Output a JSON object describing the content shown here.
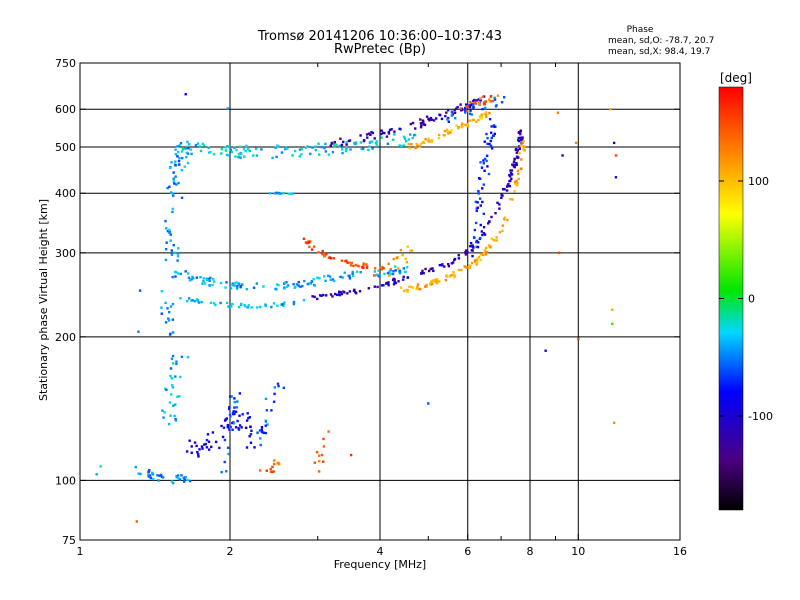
{
  "chart_data": {
    "type": "scatter",
    "title": "Tromsø 20141206 10:36:00–10:37:43",
    "subtitle": "RwPretec (Bp)",
    "xlabel": "Frequency [MHz]",
    "ylabel": "Stationary phase Virtual Height [km]",
    "x_scale": "log",
    "y_scale": "log",
    "xlim": [
      1,
      16
    ],
    "ylim": [
      75,
      750
    ],
    "x_ticks": [
      1,
      2,
      4,
      6,
      8,
      10,
      16
    ],
    "x_tick_labels": [
      "1",
      "2",
      "4",
      "6",
      "8",
      "10",
      "16"
    ],
    "x_minor_ticks": [
      3,
      5,
      7,
      9
    ],
    "y_ticks": [
      75,
      100,
      200,
      300,
      400,
      500,
      600,
      750
    ],
    "y_tick_labels": [
      "75",
      "100",
      "200",
      "300",
      "400",
      "500",
      "600",
      "750"
    ],
    "grid": true,
    "grid_x": [
      2,
      4,
      6,
      8,
      10
    ],
    "grid_y": [
      100,
      200,
      300,
      400,
      500,
      600
    ],
    "stats": {
      "title": "Phase",
      "line_o": "mean, sd,O: -78.7, 20.7",
      "line_x": "mean, sd,X:  98.4, 19.7"
    },
    "colorbar": {
      "label": "[deg]",
      "range": [
        -180,
        180
      ],
      "ticks": [
        100,
        0,
        -100
      ],
      "tick_labels": [
        "100",
        "0",
        "-100"
      ],
      "colormap": "rainbow (black → violet → blue → cyan → green → yellow → red)"
    },
    "traces": [
      {
        "x": [
          1.55,
          1.7,
          1.9,
          2.1,
          2.3,
          2.6,
          2.9,
          3.2,
          3.6,
          4.0,
          4.4,
          4.7
        ],
        "y": [
          500,
          495,
          490,
          488,
          487,
          490,
          493,
          497,
          503,
          510,
          518,
          525
        ],
        "phase": -30,
        "jitter": 0.05,
        "n": 120
      },
      {
        "x": [
          3.2,
          3.6,
          4.0,
          4.4,
          4.8,
          5.2,
          5.6,
          6.0,
          6.4
        ],
        "y": [
          510,
          520,
          530,
          545,
          560,
          575,
          590,
          610,
          630
        ],
        "phase": -115,
        "jitter": 0.03,
        "n": 80
      },
      {
        "x": [
          4.6,
          5.0,
          5.4,
          5.8,
          6.2,
          6.6
        ],
        "y": [
          500,
          515,
          530,
          550,
          570,
          590
        ],
        "phase": 105,
        "jitter": 0.025,
        "n": 55
      },
      {
        "x": [
          5.4,
          5.8,
          6.2,
          6.6,
          7.0
        ],
        "y": [
          570,
          590,
          605,
          615,
          625
        ],
        "phase": -60,
        "jitter": 0.04,
        "n": 30
      },
      {
        "x": [
          5.8,
          6.2,
          6.6,
          6.9
        ],
        "y": [
          600,
          615,
          630,
          640
        ],
        "phase": 140,
        "jitter": 0.03,
        "n": 20
      },
      {
        "x": [
          1.48,
          1.5,
          1.52,
          1.53,
          1.54,
          1.55,
          1.57,
          1.6,
          1.62
        ],
        "y": [
          200,
          225,
          260,
          300,
          350,
          400,
          450,
          480,
          500
        ],
        "phase": -45,
        "jitter": 0.06,
        "n": 80
      },
      {
        "x": [
          1.55,
          1.7,
          1.9,
          2.1,
          2.4,
          2.7,
          3.0,
          3.4,
          3.8,
          4.2,
          4.6
        ],
        "y": [
          275,
          265,
          258,
          255,
          255,
          257,
          262,
          268,
          272,
          275,
          278
        ],
        "phase": -40,
        "jitter": 0.03,
        "n": 120
      },
      {
        "x": [
          1.6,
          1.8,
          2.0,
          2.3,
          2.6,
          2.9
        ],
        "y": [
          240,
          236,
          233,
          232,
          234,
          238
        ],
        "phase": -35,
        "jitter": 0.015,
        "n": 45
      },
      {
        "x": [
          2.9,
          3.3,
          3.7,
          4.1,
          4.5,
          5.0,
          5.5,
          6.0,
          6.4,
          6.8,
          7.1,
          7.4,
          7.6,
          7.7
        ],
        "y": [
          240,
          245,
          252,
          258,
          265,
          275,
          285,
          300,
          325,
          360,
          400,
          450,
          500,
          550
        ],
        "phase": -110,
        "jitter": 0.02,
        "n": 150
      },
      {
        "x": [
          4.4,
          4.8,
          5.2,
          5.6,
          6.0,
          6.4,
          6.8,
          7.2,
          7.5,
          7.7,
          7.8
        ],
        "y": [
          250,
          255,
          262,
          270,
          280,
          295,
          320,
          360,
          420,
          480,
          520
        ],
        "phase": 110,
        "jitter": 0.02,
        "n": 110
      },
      {
        "x": [
          2.8,
          3.0,
          3.2,
          3.5,
          3.8,
          4.1
        ],
        "y": [
          320,
          302,
          292,
          285,
          280,
          278
        ],
        "phase": 150,
        "jitter": 0.02,
        "n": 45
      },
      {
        "x": [
          6.2,
          6.3,
          6.4,
          6.5,
          6.6,
          6.8
        ],
        "y": [
          300,
          350,
          400,
          450,
          500,
          560
        ],
        "phase": -75,
        "jitter": 0.04,
        "n": 55
      },
      {
        "x": [
          1.5,
          1.52,
          1.55,
          1.6
        ],
        "y": [
          130,
          150,
          170,
          185
        ],
        "phase": -40,
        "jitter": 0.06,
        "n": 30
      },
      {
        "x": [
          1.7,
          1.9,
          2.1,
          2.3
        ],
        "y": [
          115,
          125,
          135,
          120
        ],
        "phase": -90,
        "jitter": 0.08,
        "n": 60
      },
      {
        "x": [
          1.3,
          1.5,
          1.7
        ],
        "y": [
          105,
          100,
          102
        ],
        "phase": -45,
        "jitter": 0.03,
        "n": 35
      },
      {
        "x": [
          1.95,
          2.05
        ],
        "y": [
          105,
          150
        ],
        "phase": -60,
        "jitter": 0.04,
        "n": 25
      },
      {
        "x": [
          2.3,
          2.4,
          2.5
        ],
        "y": [
          120,
          140,
          160
        ],
        "phase": -55,
        "jitter": 0.05,
        "n": 20
      },
      {
        "x": [
          2.35,
          2.5
        ],
        "y": [
          105,
          108
        ],
        "phase": 140,
        "jitter": 0.04,
        "n": 12
      },
      {
        "x": [
          3.0,
          3.15
        ],
        "y": [
          105,
          130
        ],
        "phase": 140,
        "jitter": 0.04,
        "n": 10
      },
      {
        "x": [
          2.4,
          2.55,
          2.7
        ],
        "y": [
          400,
          400,
          400
        ],
        "phase": -35,
        "jitter": 0.005,
        "n": 12
      },
      {
        "x": [
          3.9,
          4.3,
          4.6
        ],
        "y": [
          270,
          285,
          310
        ],
        "phase": 115,
        "jitter": 0.06,
        "n": 15
      }
    ],
    "sparse_points": [
      {
        "x": 1.63,
        "y": 645,
        "phase": -80
      },
      {
        "x": 1.98,
        "y": 602,
        "phase": -45
      },
      {
        "x": 1.32,
        "y": 250,
        "phase": -60
      },
      {
        "x": 1.31,
        "y": 205,
        "phase": -50
      },
      {
        "x": 1.08,
        "y": 103,
        "phase": -40
      },
      {
        "x": 1.3,
        "y": 82,
        "phase": 140
      },
      {
        "x": 9.1,
        "y": 590,
        "phase": 130
      },
      {
        "x": 9.3,
        "y": 480,
        "phase": -120
      },
      {
        "x": 9.9,
        "y": 510,
        "phase": 125
      },
      {
        "x": 11.8,
        "y": 510,
        "phase": -95
      },
      {
        "x": 11.9,
        "y": 480,
        "phase": 150
      },
      {
        "x": 11.9,
        "y": 432,
        "phase": -110
      },
      {
        "x": 11.6,
        "y": 600,
        "phase": 115
      },
      {
        "x": 9.15,
        "y": 300,
        "phase": 155
      },
      {
        "x": 8.6,
        "y": 187,
        "phase": -95
      },
      {
        "x": 10.0,
        "y": 198,
        "phase": 150
      },
      {
        "x": 11.7,
        "y": 228,
        "phase": 110
      },
      {
        "x": 11.7,
        "y": 213,
        "phase": 20
      },
      {
        "x": 11.8,
        "y": 132,
        "phase": 120
      },
      {
        "x": 5.0,
        "y": 145,
        "phase": -60
      },
      {
        "x": 3.5,
        "y": 113,
        "phase": 160
      },
      {
        "x": 1.1,
        "y": 107,
        "phase": -20
      }
    ]
  }
}
